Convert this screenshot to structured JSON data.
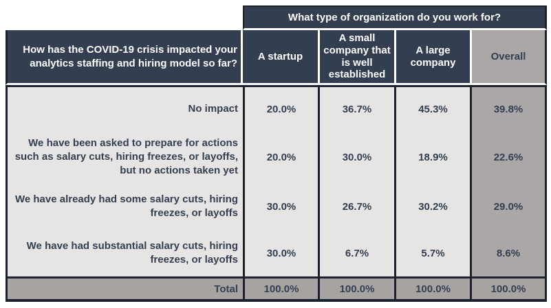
{
  "table": {
    "top_header": "What type of organization do you work for?",
    "question_header": "How has the COVID-19 crisis impacted your analytics staffing and hiring model so far?",
    "columns": [
      "A startup",
      "A small company that is well established",
      "A large company",
      "Overall"
    ],
    "rows": [
      {
        "label": "No impact",
        "values": [
          "20.0%",
          "36.7%",
          "45.3%",
          "39.8%"
        ]
      },
      {
        "label": "We have been asked to prepare for actions such as salary cuts, hiring freezes, or layoffs, but no actions taken yet",
        "values": [
          "20.0%",
          "30.0%",
          "18.9%",
          "22.6%"
        ]
      },
      {
        "label": "We have already had some salary cuts, hiring freezes, or layoffs",
        "values": [
          "30.0%",
          "26.7%",
          "30.2%",
          "29.0%"
        ]
      },
      {
        "label": "We have had substantial salary cuts, hiring freezes, or layoffs",
        "values": [
          "30.0%",
          "6.7%",
          "5.7%",
          "8.6%"
        ]
      }
    ],
    "total_row": {
      "label": "Total",
      "values": [
        "100.0%",
        "100.0%",
        "100.0%",
        "100.0%"
      ]
    }
  },
  "colors": {
    "header_navy": "#333F50",
    "body_light_gray": "#E7E5E4",
    "overall_column_gray": "#ABA7A6",
    "total_row_gray": "#A7A3A1",
    "border_dark": "#1C222C",
    "text_light": "#FFFFFF",
    "text_dark": "#333F50"
  },
  "chart_data": {
    "type": "table",
    "title": "What type of organization do you work for?",
    "row_question": "How has the COVID-19 crisis impacted your analytics staffing and hiring model so far?",
    "columns": [
      "A startup",
      "A small company that is well established",
      "A large company",
      "Overall"
    ],
    "row_labels": [
      "No impact",
      "We have been asked to prepare for actions such as salary cuts, hiring freezes, or layoffs, but no actions taken yet",
      "We have already had some salary cuts, hiring freezes, or layoffs",
      "We have had substantial salary cuts, hiring freezes, or layoffs",
      "Total"
    ],
    "values_pct": [
      [
        20.0,
        36.7,
        45.3,
        39.8
      ],
      [
        20.0,
        30.0,
        18.9,
        22.6
      ],
      [
        30.0,
        26.7,
        30.2,
        29.0
      ],
      [
        30.0,
        6.7,
        5.7,
        8.6
      ],
      [
        100.0,
        100.0,
        100.0,
        100.0
      ]
    ]
  }
}
